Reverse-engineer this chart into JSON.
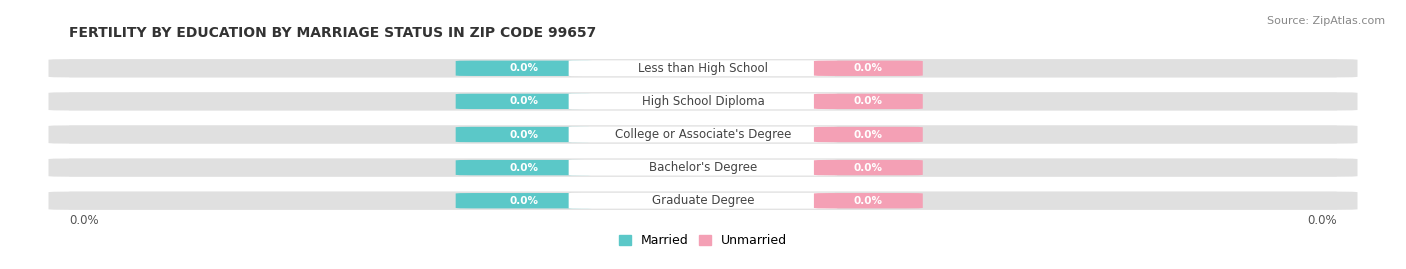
{
  "title": "FERTILITY BY EDUCATION BY MARRIAGE STATUS IN ZIP CODE 99657",
  "source": "Source: ZipAtlas.com",
  "categories": [
    "Less than High School",
    "High School Diploma",
    "College or Associate's Degree",
    "Bachelor's Degree",
    "Graduate Degree"
  ],
  "married_values": [
    0.0,
    0.0,
    0.0,
    0.0,
    0.0
  ],
  "unmarried_values": [
    0.0,
    0.0,
    0.0,
    0.0,
    0.0
  ],
  "married_color": "#5bc8c8",
  "unmarried_color": "#f4a0b5",
  "bar_bg_color": "#e0e0e0",
  "row_bg_color": "#f2f2f2",
  "label_color": "#444444",
  "value_label_married": "0.0%",
  "value_label_unmarried": "0.0%",
  "x_left_label": "0.0%",
  "x_right_label": "0.0%",
  "legend_married": "Married",
  "legend_unmarried": "Unmarried",
  "title_fontsize": 10,
  "source_fontsize": 8,
  "label_fontsize": 8.5,
  "value_fontsize": 7.5,
  "background_color": "#ffffff"
}
